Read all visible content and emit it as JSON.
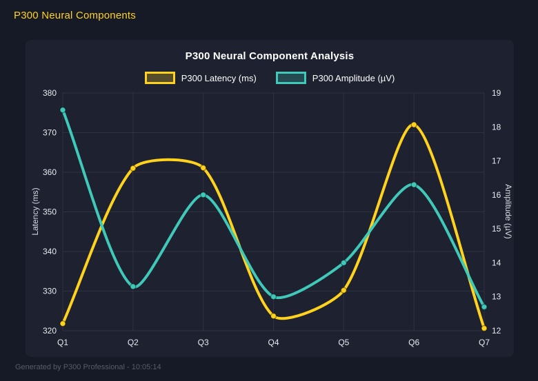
{
  "page": {
    "header_title": "P300 Neural Components",
    "footer": "Generated by P300 Professional - 10:05:14"
  },
  "colors": {
    "page_bg": "#161A26",
    "panel_bg": "#1D2130",
    "grid": "rgba(255,255,255,0.08)",
    "tick_text": "#E9EAEF",
    "yellow": "#FFD21E",
    "teal": "#40C8B8"
  },
  "chart_data": {
    "type": "line",
    "title": "P300 Neural Component Analysis",
    "categories": [
      "Q1",
      "Q2",
      "Q3",
      "Q4",
      "Q5",
      "Q6",
      "Q7"
    ],
    "series": [
      {
        "name": "P300 Latency (ms)",
        "axis": "left",
        "color": "#FFD21E",
        "values": [
          321.8,
          361.0,
          361.1,
          323.7,
          330.2,
          372.0,
          320.6
        ]
      },
      {
        "name": "P300 Amplitude (µV)",
        "axis": "right",
        "color": "#40C8B8",
        "values": [
          18.5,
          13.3,
          16.0,
          13.0,
          14.0,
          16.3,
          12.7
        ]
      }
    ],
    "left_axis": {
      "label": "Latency (ms)",
      "min": 320,
      "max": 380,
      "ticks": [
        380,
        370,
        360,
        350,
        340,
        330,
        320
      ]
    },
    "right_axis": {
      "label": "Amplitude (µV)",
      "min": 12,
      "max": 19,
      "ticks": [
        19,
        18,
        17,
        16,
        15,
        14,
        13,
        12
      ]
    },
    "grid": true,
    "legend_position": "top",
    "line_tension": 0.25,
    "line_width": 4,
    "point_radius": 4
  }
}
